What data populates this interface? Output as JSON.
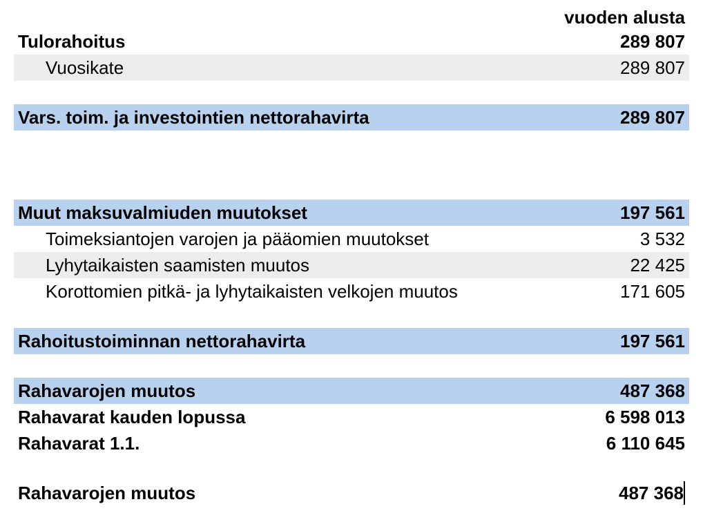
{
  "colors": {
    "highlight_blue": "#b8d1ef",
    "shade_gray": "#ececec",
    "background": "#ffffff",
    "text": "#000000"
  },
  "typography": {
    "font_family": "Arial",
    "base_fontsize": 26,
    "bold_weight": 700,
    "normal_weight": 400
  },
  "header": {
    "column_label": "vuoden alusta"
  },
  "rows": [
    {
      "label": "Tulorahoitus",
      "value": "289 807",
      "style": "bold",
      "bg": "none",
      "indent": false
    },
    {
      "label": "Vuosikate",
      "value": "289 807",
      "style": "normal",
      "bg": "gray",
      "indent": true
    },
    {
      "spacer": "sm"
    },
    {
      "label": "Vars. toim. ja investointien nettorahavirta",
      "value": "289 807",
      "style": "bold",
      "bg": "blue",
      "indent": false
    },
    {
      "spacer": "lg"
    },
    {
      "label": "Muut maksuvalmiuden muutokset",
      "value": "197 561",
      "style": "bold",
      "bg": "blue",
      "indent": false
    },
    {
      "label": "Toimeksiantojen varojen ja pääomien muutokset",
      "value": "3 532",
      "style": "normal",
      "bg": "none",
      "indent": true
    },
    {
      "label": "Lyhytaikaisten saamisten muutos",
      "value": "22 425",
      "style": "normal",
      "bg": "gray",
      "indent": true
    },
    {
      "label": "Korottomien pitkä- ja lyhytaikaisten velkojen muutos",
      "value": "171 605",
      "style": "normal",
      "bg": "none",
      "indent": true
    },
    {
      "spacer": "md"
    },
    {
      "label": "Rahoitustoiminnan nettorahavirta",
      "value": "197 561",
      "style": "bold",
      "bg": "blue",
      "indent": false
    },
    {
      "spacer": "md"
    },
    {
      "label": "Rahavarojen muutos",
      "value": "487 368",
      "style": "bold",
      "bg": "blue",
      "indent": false
    },
    {
      "label": "Rahavarat kauden lopussa",
      "value": "6 598 013",
      "style": "bold",
      "bg": "none",
      "indent": false
    },
    {
      "label": "Rahavarat 1.1.",
      "value": "6 110 645",
      "style": "bold",
      "bg": "none",
      "indent": false
    },
    {
      "spacer": "md"
    },
    {
      "label": "Rahavarojen muutos",
      "value": "487 368",
      "style": "bold",
      "bg": "none",
      "indent": false,
      "cursor": true
    }
  ]
}
